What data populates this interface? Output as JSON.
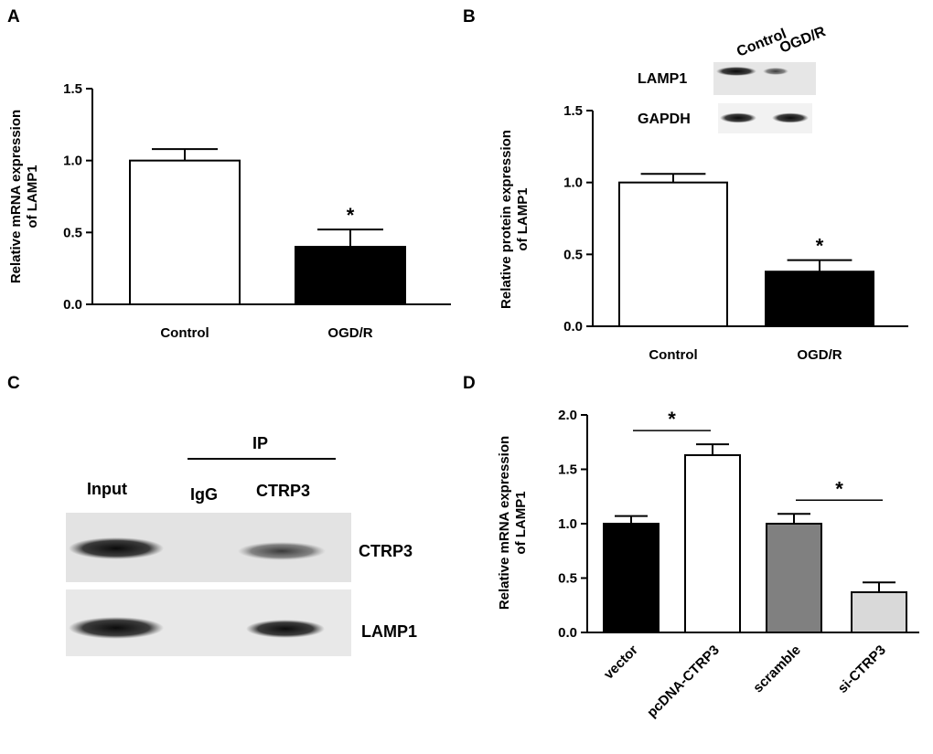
{
  "panels": {
    "A": "A",
    "B": "B",
    "C": "C",
    "D": "D"
  },
  "chart_data": [
    {
      "panel": "A",
      "type": "bar",
      "categories": [
        "Control",
        "OGD/R"
      ],
      "values": [
        1.0,
        0.4
      ],
      "errors": [
        0.08,
        0.12
      ],
      "fills": [
        "#ffffff",
        "#000000"
      ],
      "significance": [
        "",
        "*"
      ],
      "ylabel_lines": [
        "Relative mRNA expression",
        "of  LAMP1"
      ],
      "ylim": [
        0,
        1.5
      ],
      "yticks": [
        0.0,
        0.5,
        1.0,
        1.5
      ]
    },
    {
      "panel": "B",
      "type": "bar",
      "categories": [
        "Control",
        "OGD/R"
      ],
      "values": [
        1.0,
        0.38
      ],
      "errors": [
        0.06,
        0.08
      ],
      "fills": [
        "#ffffff",
        "#000000"
      ],
      "significance": [
        "",
        "*"
      ],
      "ylabel_lines": [
        "Relative  protein expression",
        "of LAMP1"
      ],
      "ylim": [
        0,
        1.5
      ],
      "yticks": [
        0.0,
        0.5,
        1.0,
        1.5
      ]
    },
    {
      "panel": "D",
      "type": "bar",
      "categories": [
        "vector",
        "pcDNA-CTRP3",
        "scramble",
        "si-CTRP3"
      ],
      "values": [
        1.0,
        1.63,
        1.0,
        0.37
      ],
      "errors": [
        0.07,
        0.1,
        0.09,
        0.09
      ],
      "fills": [
        "#000000",
        "#ffffff",
        "#808080",
        "#d9d9d9"
      ],
      "comparisons": [
        {
          "from": 0,
          "to": 1,
          "label": "*"
        },
        {
          "from": 2,
          "to": 3,
          "label": "*"
        }
      ],
      "ylabel_lines": [
        "Relative mRNA expression",
        "of  LAMP1"
      ],
      "ylim": [
        0,
        2.0
      ],
      "yticks": [
        0.0,
        0.5,
        1.0,
        1.5,
        2.0
      ]
    }
  ],
  "blot_b": {
    "lanes": [
      "Control",
      "OGD/R"
    ],
    "rows": [
      "LAMP1",
      "GAPDH"
    ]
  },
  "blot_c": {
    "ip_label": "IP",
    "lanes": [
      "Input",
      "IgG",
      "CTRP3"
    ],
    "rows": [
      "CTRP3",
      "LAMP1"
    ]
  }
}
